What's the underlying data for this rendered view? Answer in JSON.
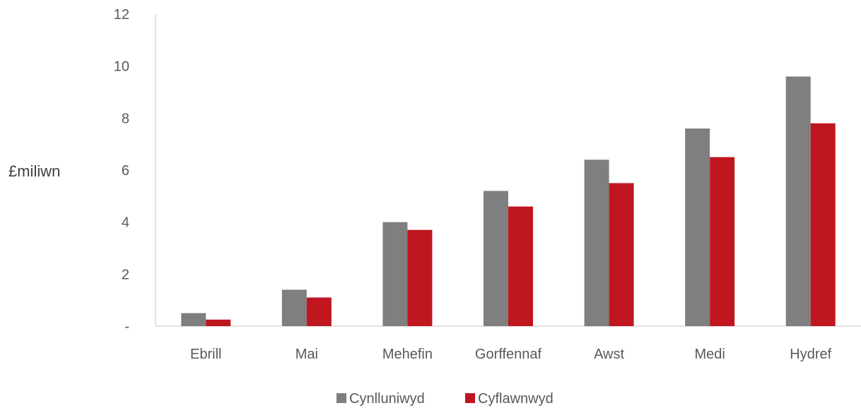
{
  "chart_data": {
    "type": "bar",
    "title": "",
    "xlabel": "",
    "ylabel": "£miliwn",
    "categories": [
      "Ebrill",
      "Mai",
      "Mehefin",
      "Gorffennaf",
      "Awst",
      "Medi",
      "Hydref"
    ],
    "series": [
      {
        "name": "Cynlluniwyd",
        "color": "#7f7f7f",
        "values": [
          0.5,
          1.4,
          4.0,
          5.2,
          6.4,
          7.6,
          9.6
        ]
      },
      {
        "name": "Cyflawnwyd",
        "color": "#c0161f",
        "values": [
          0.25,
          1.1,
          3.7,
          4.6,
          5.5,
          6.5,
          7.8
        ]
      }
    ],
    "ylim": [
      0,
      12
    ],
    "yticks": [
      0,
      2,
      4,
      6,
      8,
      10,
      12
    ],
    "ytick_labels": [
      "-",
      "2",
      "4",
      "6",
      "8",
      "10",
      "12"
    ],
    "grid": false,
    "legend_position": "bottom"
  }
}
